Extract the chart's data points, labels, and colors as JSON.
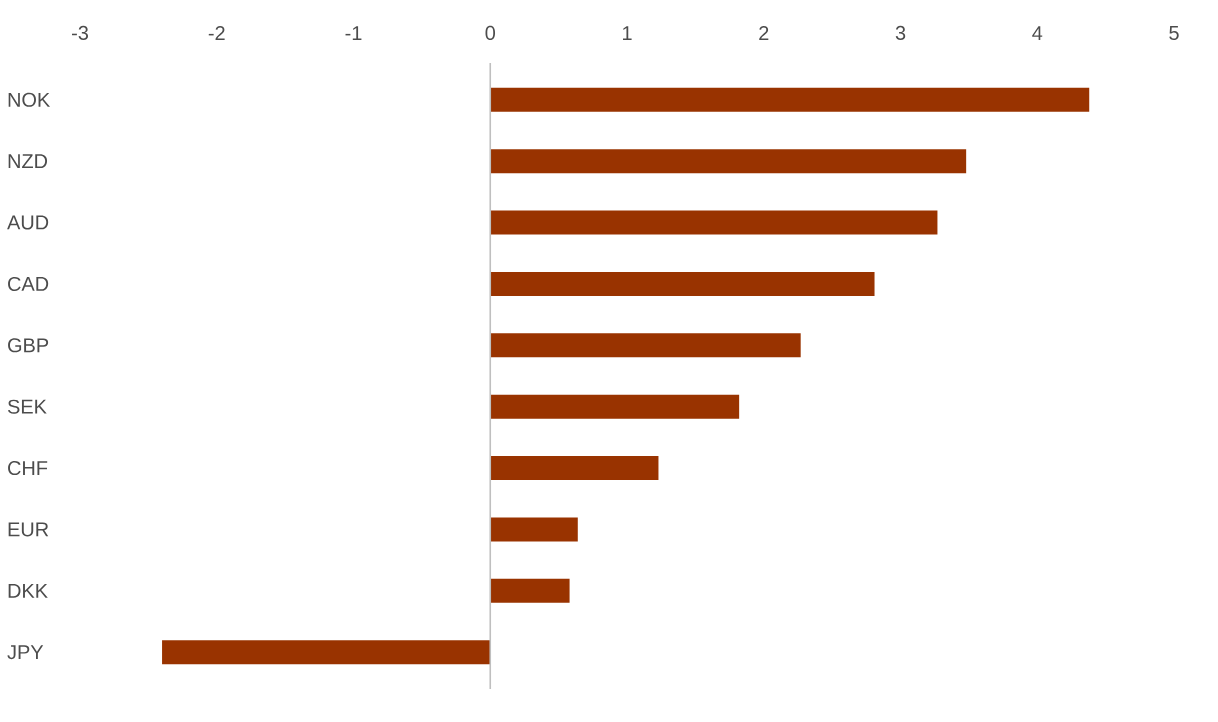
{
  "chart_data": {
    "type": "bar",
    "orientation": "horizontal",
    "categories": [
      "NOK",
      "NZD",
      "AUD",
      "CAD",
      "GBP",
      "SEK",
      "CHF",
      "EUR",
      "DKK",
      "JPY"
    ],
    "values": [
      4.38,
      3.48,
      3.27,
      2.81,
      2.27,
      1.82,
      1.23,
      0.64,
      0.58,
      -2.4
    ],
    "color": "#993300",
    "xlim": [
      -3,
      5
    ],
    "xticks": [
      -3,
      -2,
      -1,
      0,
      1,
      2,
      3,
      4,
      5
    ]
  }
}
